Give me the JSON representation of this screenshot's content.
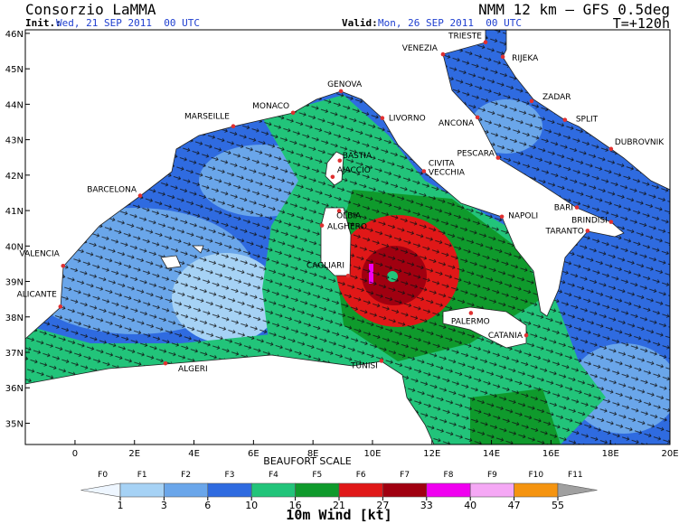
{
  "header": {
    "left_title": "Consorzio LaMMA",
    "right_title": "NMM 12 km – GFS 0.5deg",
    "init_label": "Init.:",
    "init_time": "Wed, 21 SEP 2011  00 UTC",
    "valid_label": "Valid:",
    "valid_time": "Mon, 26 SEP 2011  00 UTC",
    "lead": "T=+120h"
  },
  "map": {
    "xlim": [
      -1.67,
      20
    ],
    "ylim": [
      34.4,
      46.1
    ],
    "xticks": [
      0,
      {
        "value": 2,
        "label": "2E"
      },
      {
        "value": 4,
        "label": "4E"
      },
      {
        "value": 6,
        "label": "6E"
      },
      {
        "value": 8,
        "label": "8E"
      },
      {
        "value": 10,
        "label": "10E"
      },
      {
        "value": 12,
        "label": "12E"
      },
      {
        "value": 14,
        "label": "14E"
      },
      {
        "value": 16,
        "label": "16E"
      },
      {
        "value": 18,
        "label": "18E"
      },
      {
        "value": 20,
        "label": "20E"
      }
    ],
    "yticks": [
      {
        "value": 35,
        "label": "35N"
      },
      {
        "value": 36,
        "label": "36N"
      },
      {
        "value": 37,
        "label": "37N"
      },
      {
        "value": 38,
        "label": "38N"
      },
      {
        "value": 39,
        "label": "39N"
      },
      {
        "value": 40,
        "label": "40N"
      },
      {
        "value": 41,
        "label": "41N"
      },
      {
        "value": 42,
        "label": "42N"
      },
      {
        "value": 43,
        "label": "43N"
      },
      {
        "value": 44,
        "label": "44N"
      },
      {
        "value": 45,
        "label": "45N"
      },
      {
        "value": 46,
        "label": "46N"
      }
    ],
    "cities": [
      {
        "name": "TRIESTE",
        "lon": 13.8,
        "lat": 45.75
      },
      {
        "name": "VENEZIA",
        "lon": 12.37,
        "lat": 45.41
      },
      {
        "name": "RIJEKA",
        "lon": 14.38,
        "lat": 45.34
      },
      {
        "name": "ZADAR",
        "lon": 15.35,
        "lat": 44.09
      },
      {
        "name": "SPLIT",
        "lon": 16.47,
        "lat": 43.56
      },
      {
        "name": "DUBROVNIK",
        "lon": 18.02,
        "lat": 42.74
      },
      {
        "name": "GENOVA",
        "lon": 8.94,
        "lat": 44.37
      },
      {
        "name": "MONACO",
        "lon": 7.33,
        "lat": 43.76
      },
      {
        "name": "MARSEILLE",
        "lon": 5.32,
        "lat": 43.38
      },
      {
        "name": "LIVORNO",
        "lon": 10.33,
        "lat": 43.61
      },
      {
        "name": "ANCONA",
        "lon": 13.53,
        "lat": 43.63
      },
      {
        "name": "PESCARA",
        "lon": 14.22,
        "lat": 42.49
      },
      {
        "name": "BASTIA",
        "lon": 8.9,
        "lat": 42.41
      },
      {
        "name": "AJACCIO",
        "lon": 8.66,
        "lat": 41.95
      },
      {
        "name": [
          "CIVITA",
          "VECCHIA"
        ],
        "lon": 11.73,
        "lat": 42.11
      },
      {
        "name": "BARCELONA",
        "lon": 2.19,
        "lat": 41.42
      },
      {
        "name": "OLBIA",
        "lon": 8.88,
        "lat": 40.99
      },
      {
        "name": "ALGHERO",
        "lon": 8.3,
        "lat": 40.58
      },
      {
        "name": "NAPOLI",
        "lon": 14.35,
        "lat": 40.83
      },
      {
        "name": "BARI",
        "lon": 16.87,
        "lat": 41.09
      },
      {
        "name": "BRINDISI",
        "lon": 18.02,
        "lat": 40.68
      },
      {
        "name": "TARANTO",
        "lon": 17.23,
        "lat": 40.43
      },
      {
        "name": "VALENCIA",
        "lon": -0.4,
        "lat": 39.44
      },
      {
        "name": "CAGLIARI",
        "lon": 9.18,
        "lat": 39.16
      },
      {
        "name": "ALICANTE",
        "lon": -0.49,
        "lat": 38.29
      },
      {
        "name": "PALERMO",
        "lon": 13.31,
        "lat": 38.11
      },
      {
        "name": "CATANIA",
        "lon": 15.17,
        "lat": 37.48
      },
      {
        "name": "TUNISI",
        "lon": 10.3,
        "lat": 36.76
      },
      {
        "name": "ALGERI",
        "lon": 3.04,
        "lat": 36.69
      }
    ]
  },
  "legend": {
    "title": "BEAUFORT SCALE",
    "unit_label": "10m Wind [kt]",
    "classes": [
      "F0",
      "F1",
      "F2",
      "F3",
      "F4",
      "F5",
      "F6",
      "F7",
      "F8",
      "F9",
      "F10",
      "F11"
    ],
    "bounds": [
      1,
      3,
      6,
      10,
      16,
      21,
      27,
      33,
      40,
      47,
      55
    ],
    "colors": [
      "#eef6ff",
      "#a6d2f5",
      "#6aa6ea",
      "#2f6be0",
      "#22c47a",
      "#0f9a2c",
      "#e01818",
      "#a00010",
      "#f000f0",
      "#f5a8f5",
      "#f59410",
      "#a0a0a0"
    ]
  }
}
